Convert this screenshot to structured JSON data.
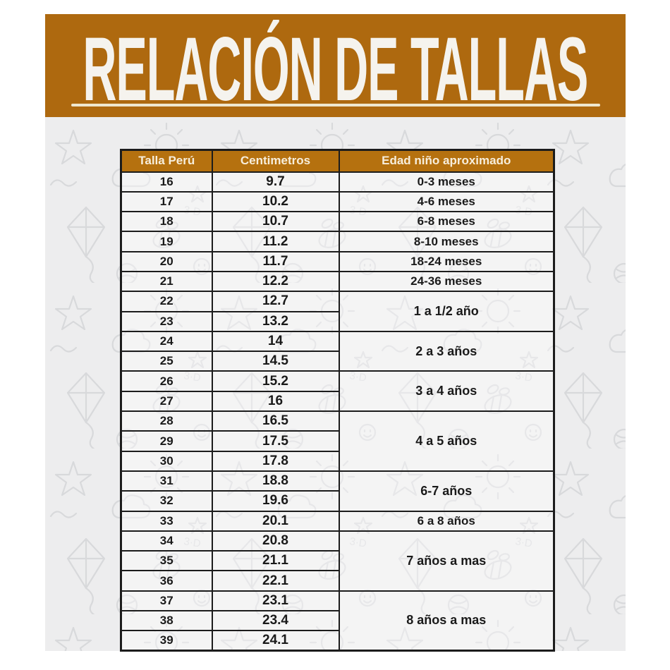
{
  "header": {
    "title": "RELACIÓN DE TALLAS"
  },
  "colors": {
    "banner": "#AE690F",
    "table_header_bg": "#B5710F",
    "header_text": "#F7EEDC",
    "title_text": "#F5F3EE",
    "underline": "#EFE7CF",
    "panel_bg": "#EDEDEE",
    "doodle": "#D8D9DB",
    "border": "#1C1C1C",
    "cell_text": "#1A1A1A"
  },
  "table": {
    "columns": [
      "Talla Perú",
      "Centimetros",
      "Edad niño aproximado"
    ],
    "rows": [
      {
        "talla": "16",
        "cm": "9.7",
        "edad": "0-3 meses",
        "span": 1
      },
      {
        "talla": "17",
        "cm": "10.2",
        "edad": "4-6 meses",
        "span": 1
      },
      {
        "talla": "18",
        "cm": "10.7",
        "edad": "6-8 meses",
        "span": 1
      },
      {
        "talla": "19",
        "cm": "11.2",
        "edad": "8-10 meses",
        "span": 1
      },
      {
        "talla": "20",
        "cm": "11.7",
        "edad": "18-24 meses",
        "span": 1
      },
      {
        "talla": "21",
        "cm": "12.2",
        "edad": "24-36 meses",
        "span": 1
      },
      {
        "talla": "22",
        "cm": "12.7",
        "edad": "1 a 1/2 año",
        "span": 2
      },
      {
        "talla": "23",
        "cm": "13.2"
      },
      {
        "talla": "24",
        "cm": "14",
        "edad": "2 a 3 años",
        "span": 2
      },
      {
        "talla": "25",
        "cm": "14.5"
      },
      {
        "talla": "26",
        "cm": "15.2",
        "edad": "3 a 4 años",
        "span": 2
      },
      {
        "talla": "27",
        "cm": "16"
      },
      {
        "talla": "28",
        "cm": "16.5",
        "edad": "4 a 5 años",
        "span": 3
      },
      {
        "talla": "29",
        "cm": "17.5"
      },
      {
        "talla": "30",
        "cm": "17.8"
      },
      {
        "talla": "31",
        "cm": "18.8",
        "edad": "6-7 años",
        "span": 2
      },
      {
        "talla": "32",
        "cm": "19.6"
      },
      {
        "talla": "33",
        "cm": "20.1",
        "edad": "6 a 8 años",
        "span": 1
      },
      {
        "talla": "34",
        "cm": "20.8",
        "edad": "7 años a mas",
        "span": 3
      },
      {
        "talla": "35",
        "cm": "21.1"
      },
      {
        "talla": "36",
        "cm": "22.1"
      },
      {
        "talla": "37",
        "cm": "23.1",
        "edad": "8 años a mas",
        "span": 3
      },
      {
        "talla": "38",
        "cm": "23.4"
      },
      {
        "talla": "39",
        "cm": "24.1"
      }
    ]
  }
}
